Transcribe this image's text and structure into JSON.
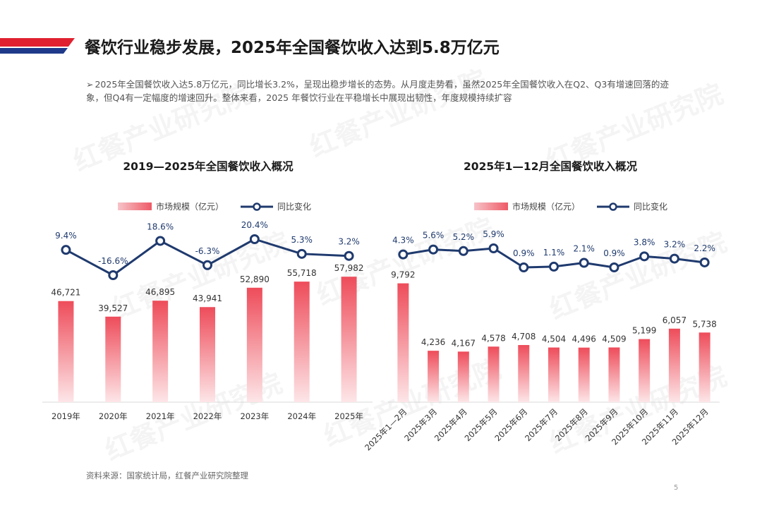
{
  "header": {
    "title": "餐饮行业稳步发展，2025年全国餐饮收入达到5.8万亿元",
    "accent_red": "#e0212f",
    "accent_blue": "#1f3a8a"
  },
  "summary": {
    "bullet": "➢",
    "text": "2025年全国餐饮收入达5.8万亿元，同比增长3.2%，呈现出稳步增长的态势。从月度走势看，虽然2025年全国餐饮收入在Q2、Q3有增速回落的迹象，但Q4有一定幅度的增速回升。整体来看，2025 年餐饮行业在平稳增长中展现出韧性，年度规模持续扩容"
  },
  "watermark": {
    "text": "红餐产业研究院"
  },
  "colors": {
    "bar_top": "#ee4c5a",
    "bar_bottom": "#fde6e8",
    "line": "#1f3a6e"
  },
  "chart_data": [
    {
      "type": "bar",
      "title": "2019—2025年全国餐饮收入概况",
      "categories": [
        "2019年",
        "2020年",
        "2021年",
        "2022年",
        "2023年",
        "2024年",
        "2025年"
      ],
      "series": [
        {
          "name": "市场规模（亿元）",
          "type": "bar",
          "values": [
            46721,
            39527,
            46895,
            43941,
            52890,
            55718,
            57982
          ],
          "labels": [
            "46,721",
            "39,527",
            "46,895",
            "43,941",
            "52,890",
            "55,718",
            "57,982"
          ]
        },
        {
          "name": "同比变化",
          "type": "line",
          "values": [
            9.4,
            -16.6,
            18.6,
            -6.3,
            20.4,
            5.3,
            3.2
          ],
          "labels": [
            "9.4%",
            "-16.6%",
            "18.6%",
            "-6.3%",
            "20.4%",
            "5.3%",
            "3.2%"
          ]
        }
      ],
      "bar_range": [
        0,
        60000
      ],
      "line_range": [
        -16.6,
        20.4
      ],
      "legend": "top",
      "grid": false
    },
    {
      "type": "bar",
      "title": "2025年1—12月全国餐饮收入概况",
      "categories": [
        "2025年1—2月",
        "2025年3月",
        "2025年4月",
        "2025年5月",
        "2025年6月",
        "2025年7月",
        "2025年8月",
        "2025年9月",
        "2025年10月",
        "2025年11月",
        "2025年12月"
      ],
      "series": [
        {
          "name": "市场规模（亿元）",
          "type": "bar",
          "values": [
            9792,
            4236,
            4167,
            4578,
            4708,
            4504,
            4496,
            4509,
            5199,
            6057,
            5738
          ],
          "labels": [
            "9,792",
            "4,236",
            "4,167",
            "4,578",
            "4,708",
            "4,504",
            "4,496",
            "4,509",
            "5,199",
            "6,057",
            "5,738"
          ]
        },
        {
          "name": "同比变化",
          "type": "line",
          "values": [
            4.3,
            5.6,
            5.2,
            5.9,
            0.9,
            1.1,
            2.1,
            0.9,
            3.8,
            3.2,
            2.2
          ],
          "labels": [
            "4.3%",
            "5.6%",
            "5.2%",
            "5.9%",
            "0.9%",
            "1.1%",
            "2.1%",
            "0.9%",
            "3.8%",
            "3.2%",
            "2.2%"
          ]
        }
      ],
      "bar_range": [
        0,
        10000
      ],
      "line_range": [
        0.9,
        5.9
      ],
      "legend": "top",
      "grid": false
    }
  ],
  "footer": {
    "source": "资料来源：国家统计局，红餐产业研究院整理",
    "page_number": "5"
  }
}
